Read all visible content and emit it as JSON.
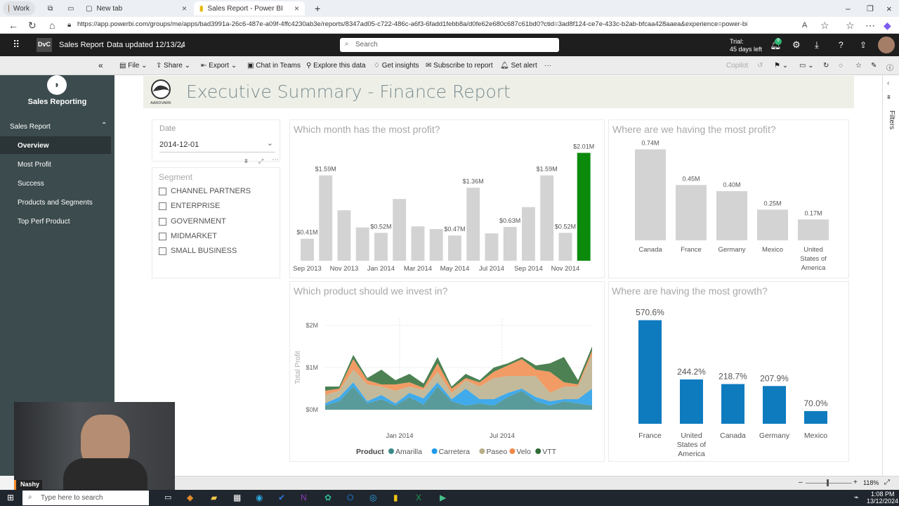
{
  "browser": {
    "profile": "Work",
    "tabs": [
      {
        "label": "New tab"
      },
      {
        "label": "Sales Report - Power BI"
      }
    ],
    "url": "https://app.powerbi.com/groups/me/apps/bad3991a-26c6-487e-a09f-4ffc4230ab3e/reports/8347ad05-c722-486c-a6f3-6fadd1febb8a/d0fe62e680c687c61bd0?ctid=3ad8f124-ce7e-433c-b2ab-bfcaa428aaea&experience=power-bi"
  },
  "header": {
    "logo_text": "DvC",
    "app_name": "Sales Report",
    "data_updated": "Data updated 12/13/24",
    "search_placeholder": "Search",
    "trial_line1": "Trial:",
    "trial_line2": "45 days left",
    "notif_count": "9"
  },
  "toolbar": {
    "file": "File",
    "share": "Share",
    "export": "Export",
    "chat": "Chat in Teams",
    "explore": "Explore this data",
    "insights": "Get insights",
    "subscribe": "Subscribe to report",
    "alert": "Set alert",
    "more": "···",
    "copilot": "Copilot"
  },
  "sidebar": {
    "title": "Sales Reporting",
    "section": "Sales Report",
    "items": [
      {
        "label": "Overview"
      },
      {
        "label": "Most Profit"
      },
      {
        "label": "Success"
      },
      {
        "label": "Products and Segments"
      },
      {
        "label": "Top Perf Product"
      }
    ]
  },
  "report": {
    "logo_label": "AARDVARK",
    "title": "Executive Summary - Finance Report",
    "date_label": "Date",
    "date_value": "2014-12-01",
    "segment_label": "Segment",
    "segments": [
      {
        "label": "CHANNEL PARTNERS"
      },
      {
        "label": "ENTERPRISE"
      },
      {
        "label": "GOVERNMENT"
      },
      {
        "label": "MIDMARKET"
      },
      {
        "label": "SMALL BUSINESS"
      }
    ],
    "filters_label": "Filters"
  },
  "colors": {
    "highlight": "#0b8a0b",
    "bar_grey": "#d3d3d3",
    "growth_blue": "#0e7bbf",
    "Amarilla": "#3c8a8a",
    "Carretera": "#1e9be8",
    "Paseo": "#b9ae8a",
    "Velo": "#f0894a",
    "VTT": "#2e6b35"
  },
  "chart_data": [
    {
      "type": "bar",
      "title": "Which month has the most profit?",
      "categories": [
        "Sep 2013",
        "Oct 2013",
        "Nov 2013",
        "Dec 2013",
        "Jan 2014",
        "Feb 2014",
        "Mar 2014",
        "Apr 2014",
        "May 2014",
        "Jun 2014",
        "Jul 2014",
        "Aug 2014",
        "Sep 2014",
        "Oct 2014",
        "Nov 2014",
        "Dec 2014"
      ],
      "tick_labels": [
        "Sep 2013",
        "Nov 2013",
        "Jan 2014",
        "Mar 2014",
        "May 2014",
        "Jul 2014",
        "Sep 2014",
        "Nov 2014"
      ],
      "values": [
        0.41,
        1.59,
        0.94,
        0.62,
        0.52,
        1.15,
        0.64,
        0.59,
        0.47,
        1.36,
        0.51,
        0.63,
        1.0,
        1.59,
        0.52,
        2.01
      ],
      "data_labels": [
        "$0.41M",
        "$1.59M",
        "",
        "",
        "$0.52M",
        "",
        "",
        "",
        "$0.47M",
        "$1.36M",
        "",
        "$0.63M",
        "",
        "$1.59M",
        "$0.52M",
        "$2.01M"
      ],
      "highlight_index": 15,
      "ylim": [
        0,
        2.2
      ]
    },
    {
      "type": "bar",
      "title": "Where are we having the most profit?",
      "categories": [
        "Canada",
        "France",
        "Germany",
        "Mexico",
        "United States of America"
      ],
      "values": [
        0.74,
        0.45,
        0.4,
        0.25,
        0.17
      ],
      "data_labels": [
        "0.74M",
        "0.45M",
        "0.40M",
        "0.25M",
        "0.17M"
      ],
      "ylim": [
        0,
        0.8
      ]
    },
    {
      "type": "area",
      "title": "Which product should we invest in?",
      "ylabel": "Total Profit",
      "y_ticks": [
        "$2M",
        "$1M",
        "$0M"
      ],
      "x_ticks": [
        "Jan 2014",
        "Jul 2014"
      ],
      "legend_title": "Product",
      "series": [
        {
          "name": "Amarilla",
          "values": [
            0.1,
            0.2,
            0.55,
            0.15,
            0.25,
            0.1,
            0.3,
            0.12,
            0.55,
            0.2,
            0.1,
            0.15,
            0.1,
            0.3,
            0.45,
            0.2,
            0.1,
            0.2,
            0.15,
            0.1
          ]
        },
        {
          "name": "Carretera",
          "values": [
            0.05,
            0.1,
            0.1,
            0.05,
            0.1,
            0.05,
            0.1,
            0.15,
            0.1,
            0.05,
            0.4,
            0.1,
            0.15,
            0.1,
            0.05,
            0.1,
            0.1,
            0.05,
            0.1,
            0.4
          ]
        },
        {
          "name": "Paseo",
          "values": [
            0.2,
            0.15,
            0.3,
            0.4,
            0.2,
            0.3,
            0.15,
            0.2,
            0.25,
            0.15,
            0.2,
            0.3,
            0.5,
            0.4,
            0.3,
            0.5,
            0.2,
            0.3,
            0.3,
            0.8
          ]
        },
        {
          "name": "Velo",
          "values": [
            0.1,
            0.05,
            0.25,
            0.1,
            0.05,
            0.15,
            0.1,
            0.05,
            0.2,
            0.1,
            0.05,
            0.1,
            0.15,
            0.25,
            0.4,
            0.15,
            0.5,
            0.1,
            0.05,
            0.1
          ]
        },
        {
          "name": "VTT",
          "values": [
            0.1,
            0.05,
            0.1,
            0.05,
            0.35,
            0.1,
            0.2,
            0.1,
            0.15,
            0.05,
            0.1,
            0.05,
            0.1,
            0.05,
            0.05,
            0.1,
            0.2,
            0.6,
            0.1,
            0.1
          ]
        }
      ],
      "ylim": [
        0,
        2
      ]
    },
    {
      "type": "bar",
      "title": "Where are having the most growth?",
      "categories": [
        "France",
        "United States of America",
        "Canada",
        "Germany",
        "Mexico"
      ],
      "values": [
        570.6,
        244.2,
        218.7,
        207.9,
        70.0
      ],
      "data_labels": [
        "570.6%",
        "244.2%",
        "218.7%",
        "207.9%",
        "70.0%"
      ],
      "ylim": [
        0,
        600
      ]
    }
  ],
  "statusbar": {
    "zoom": "118%"
  },
  "webcam": {
    "name": "Nashy"
  },
  "taskbar": {
    "search_placeholder": "Type here to search",
    "time": "1:08 PM",
    "date": "13/12/2024"
  }
}
